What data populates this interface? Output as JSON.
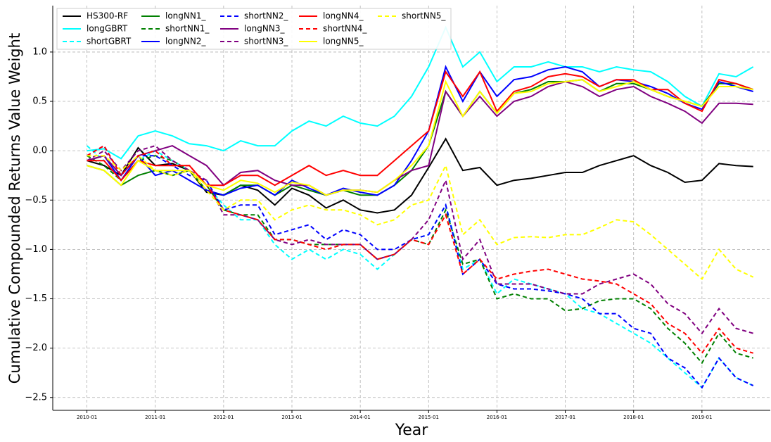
{
  "chart_data": {
    "type": "line",
    "x_label": "Year",
    "y_label": "Cumulative Compounded Returns Value Weight",
    "x": [
      "2010-01",
      "2010-04",
      "2010-07",
      "2010-10",
      "2011-01",
      "2011-04",
      "2011-07",
      "2011-10",
      "2012-01",
      "2012-04",
      "2012-07",
      "2012-10",
      "2013-01",
      "2013-04",
      "2013-07",
      "2013-10",
      "2014-01",
      "2014-04",
      "2014-07",
      "2014-10",
      "2015-01",
      "2015-04",
      "2015-07",
      "2015-10",
      "2016-01",
      "2016-04",
      "2016-07",
      "2016-10",
      "2017-01",
      "2017-04",
      "2017-07",
      "2017-10",
      "2018-01",
      "2018-04",
      "2018-07",
      "2018-10",
      "2019-01",
      "2019-04",
      "2019-07",
      "2019-10"
    ],
    "xlim": [
      "2009-07",
      "2020-01"
    ],
    "xticks": [
      "2010-01",
      "2011-01",
      "2012-01",
      "2013-01",
      "2014-01",
      "2015-01",
      "2016-01",
      "2017-01",
      "2018-01",
      "2019-01"
    ],
    "ylim": [
      -2.63,
      1.47
    ],
    "yticks": [
      {
        "value": -2.5,
        "label": "−2.5"
      },
      {
        "value": -2.0,
        "label": "−2.0"
      },
      {
        "value": -1.5,
        "label": "−1.5"
      },
      {
        "value": -1.0,
        "label": "−1.0"
      },
      {
        "value": -0.5,
        "label": "−0.5"
      },
      {
        "value": 0,
        "label": "0.0"
      },
      {
        "value": 0.5,
        "label": "0.5"
      },
      {
        "value": 1.0,
        "label": "1.0"
      }
    ],
    "grid": true,
    "legend": "upper left",
    "series": [
      {
        "name": "HS300-RF",
        "color": "#000000",
        "dashed": false,
        "values": [
          -0.1,
          -0.15,
          -0.25,
          0.03,
          -0.15,
          -0.13,
          -0.2,
          -0.42,
          -0.45,
          -0.35,
          -0.4,
          -0.55,
          -0.38,
          -0.45,
          -0.58,
          -0.5,
          -0.6,
          -0.63,
          -0.6,
          -0.45,
          -0.17,
          0.12,
          -0.2,
          -0.17,
          -0.35,
          -0.3,
          -0.28,
          -0.25,
          -0.22,
          -0.22,
          -0.15,
          -0.1,
          -0.05,
          -0.15,
          -0.22,
          -0.32,
          -0.3,
          -0.13,
          -0.15,
          -0.16
        ]
      },
      {
        "name": "longGBRT",
        "color": "#00ffff",
        "dashed": false,
        "values": [
          0.0,
          0.02,
          -0.08,
          0.15,
          0.2,
          0.15,
          0.07,
          0.05,
          0.0,
          0.1,
          0.05,
          0.05,
          0.2,
          0.3,
          0.25,
          0.35,
          0.28,
          0.25,
          0.35,
          0.55,
          0.85,
          1.25,
          0.85,
          1.0,
          0.7,
          0.85,
          0.85,
          0.9,
          0.85,
          0.85,
          0.8,
          0.85,
          0.82,
          0.8,
          0.7,
          0.55,
          0.45,
          0.78,
          0.75,
          0.85
        ]
      },
      {
        "name": "shortGBRT",
        "color": "#00ffff",
        "dashed": true,
        "values": [
          0.05,
          -0.1,
          -0.3,
          -0.1,
          0.0,
          -0.1,
          -0.2,
          -0.35,
          -0.55,
          -0.7,
          -0.7,
          -0.95,
          -1.1,
          -1.0,
          -1.1,
          -1.0,
          -1.05,
          -1.2,
          -1.05,
          -0.9,
          -0.85,
          -0.55,
          -1.2,
          -1.1,
          -1.45,
          -1.3,
          -1.35,
          -1.4,
          -1.45,
          -1.6,
          -1.65,
          -1.75,
          -1.85,
          -1.95,
          -2.1,
          -2.25,
          -2.4,
          -2.1,
          -2.3,
          -2.38
        ]
      },
      {
        "name": "longNN1_",
        "color": "#008000",
        "dashed": false,
        "values": [
          -0.15,
          -0.2,
          -0.35,
          -0.25,
          -0.2,
          -0.25,
          -0.2,
          -0.4,
          -0.45,
          -0.35,
          -0.35,
          -0.45,
          -0.35,
          -0.4,
          -0.45,
          -0.4,
          -0.45,
          -0.45,
          -0.35,
          -0.2,
          0.05,
          0.6,
          0.35,
          0.6,
          0.38,
          0.58,
          0.62,
          0.7,
          0.7,
          0.72,
          0.6,
          0.68,
          0.68,
          0.62,
          0.55,
          0.5,
          0.45,
          0.68,
          0.68,
          0.62
        ]
      },
      {
        "name": "shortNN1_",
        "color": "#008000",
        "dashed": true,
        "values": [
          -0.05,
          -0.15,
          -0.3,
          -0.1,
          -0.05,
          -0.1,
          -0.2,
          -0.35,
          -0.6,
          -0.65,
          -0.65,
          -0.9,
          -0.9,
          -0.95,
          -0.95,
          -0.95,
          -0.95,
          -1.1,
          -1.05,
          -0.9,
          -0.95,
          -0.6,
          -1.15,
          -1.1,
          -1.5,
          -1.45,
          -1.5,
          -1.5,
          -1.62,
          -1.6,
          -1.52,
          -1.5,
          -1.5,
          -1.6,
          -1.8,
          -1.95,
          -2.15,
          -1.85,
          -2.05,
          -2.1
        ]
      },
      {
        "name": "longNN2_",
        "color": "#0000ff",
        "dashed": false,
        "values": [
          -0.1,
          -0.05,
          -0.3,
          -0.05,
          -0.25,
          -0.2,
          -0.3,
          -0.4,
          -0.45,
          -0.38,
          -0.35,
          -0.45,
          -0.3,
          -0.38,
          -0.45,
          -0.38,
          -0.42,
          -0.45,
          -0.35,
          -0.1,
          0.2,
          0.85,
          0.5,
          0.8,
          0.55,
          0.72,
          0.75,
          0.82,
          0.85,
          0.8,
          0.65,
          0.72,
          0.7,
          0.65,
          0.58,
          0.48,
          0.42,
          0.7,
          0.65,
          0.6
        ]
      },
      {
        "name": "shortNN2_",
        "color": "#0000ff",
        "dashed": true,
        "values": [
          -0.05,
          0.05,
          -0.25,
          -0.05,
          -0.05,
          -0.15,
          -0.25,
          -0.3,
          -0.6,
          -0.55,
          -0.55,
          -0.85,
          -0.8,
          -0.75,
          -0.9,
          -0.8,
          -0.85,
          -1.0,
          -1.0,
          -0.9,
          -0.85,
          -0.55,
          -1.25,
          -1.1,
          -1.35,
          -1.4,
          -1.4,
          -1.42,
          -1.45,
          -1.5,
          -1.65,
          -1.65,
          -1.8,
          -1.85,
          -2.1,
          -2.2,
          -2.4,
          -2.1,
          -2.3,
          -2.38
        ]
      },
      {
        "name": "longNN3_",
        "color": "#800080",
        "dashed": false,
        "values": [
          -0.1,
          -0.05,
          -0.25,
          -0.05,
          0.0,
          0.05,
          -0.05,
          -0.15,
          -0.35,
          -0.22,
          -0.2,
          -0.3,
          -0.35,
          -0.35,
          -0.45,
          -0.4,
          -0.4,
          -0.42,
          -0.3,
          -0.2,
          -0.15,
          0.6,
          0.35,
          0.55,
          0.35,
          0.5,
          0.55,
          0.65,
          0.7,
          0.65,
          0.55,
          0.62,
          0.65,
          0.55,
          0.48,
          0.4,
          0.28,
          0.48,
          0.48,
          0.47
        ]
      },
      {
        "name": "shortNN3_",
        "color": "#800080",
        "dashed": true,
        "values": [
          -0.1,
          0.0,
          -0.2,
          0.0,
          0.05,
          -0.1,
          -0.2,
          -0.3,
          -0.65,
          -0.65,
          -0.7,
          -0.9,
          -0.95,
          -0.9,
          -0.95,
          -0.95,
          -0.95,
          -1.1,
          -1.05,
          -0.9,
          -0.7,
          -0.3,
          -1.1,
          -0.9,
          -1.35,
          -1.35,
          -1.35,
          -1.4,
          -1.45,
          -1.45,
          -1.35,
          -1.3,
          -1.25,
          -1.35,
          -1.55,
          -1.65,
          -1.85,
          -1.6,
          -1.8,
          -1.85
        ]
      },
      {
        "name": "longNN4_",
        "color": "#ff0000",
        "dashed": false,
        "values": [
          -0.1,
          -0.1,
          -0.3,
          -0.1,
          -0.15,
          -0.15,
          -0.15,
          -0.35,
          -0.35,
          -0.25,
          -0.25,
          -0.35,
          -0.25,
          -0.15,
          -0.25,
          -0.2,
          -0.25,
          -0.25,
          -0.1,
          0.05,
          0.2,
          0.8,
          0.55,
          0.8,
          0.4,
          0.6,
          0.65,
          0.75,
          0.78,
          0.75,
          0.65,
          0.72,
          0.72,
          0.62,
          0.62,
          0.48,
          0.4,
          0.72,
          0.68,
          0.62
        ]
      },
      {
        "name": "shortNN4_",
        "color": "#ff0000",
        "dashed": true,
        "values": [
          -0.05,
          0.05,
          -0.25,
          -0.05,
          0.0,
          -0.15,
          -0.15,
          -0.35,
          -0.6,
          -0.65,
          -0.7,
          -0.9,
          -0.9,
          -0.95,
          -1.0,
          -0.95,
          -0.95,
          -1.1,
          -1.05,
          -0.9,
          -0.95,
          -0.65,
          -1.25,
          -1.1,
          -1.3,
          -1.25,
          -1.22,
          -1.2,
          -1.25,
          -1.3,
          -1.32,
          -1.35,
          -1.45,
          -1.55,
          -1.75,
          -1.85,
          -2.05,
          -1.8,
          -2.0,
          -2.05
        ]
      },
      {
        "name": "longNN5_",
        "color": "#ffff00",
        "dashed": false,
        "values": [
          -0.15,
          -0.2,
          -0.35,
          -0.1,
          -0.2,
          -0.2,
          -0.2,
          -0.35,
          -0.4,
          -0.3,
          -0.33,
          -0.42,
          -0.32,
          -0.35,
          -0.45,
          -0.4,
          -0.4,
          -0.42,
          -0.3,
          -0.15,
          0.05,
          0.7,
          0.35,
          0.6,
          0.38,
          0.58,
          0.6,
          0.68,
          0.7,
          0.72,
          0.6,
          0.65,
          0.7,
          0.62,
          0.55,
          0.5,
          0.45,
          0.65,
          0.65,
          0.62
        ]
      },
      {
        "name": "shortNN5_",
        "color": "#ffff00",
        "dashed": true,
        "values": [
          -0.05,
          -0.05,
          -0.2,
          -0.05,
          -0.2,
          -0.25,
          -0.2,
          -0.4,
          -0.6,
          -0.5,
          -0.5,
          -0.7,
          -0.6,
          -0.55,
          -0.6,
          -0.6,
          -0.65,
          -0.75,
          -0.7,
          -0.55,
          -0.5,
          -0.15,
          -0.85,
          -0.7,
          -0.95,
          -0.88,
          -0.87,
          -0.88,
          -0.85,
          -0.85,
          -0.78,
          -0.7,
          -0.72,
          -0.85,
          -1.0,
          -1.15,
          -1.3,
          -1.0,
          -1.2,
          -1.28
        ]
      }
    ]
  }
}
